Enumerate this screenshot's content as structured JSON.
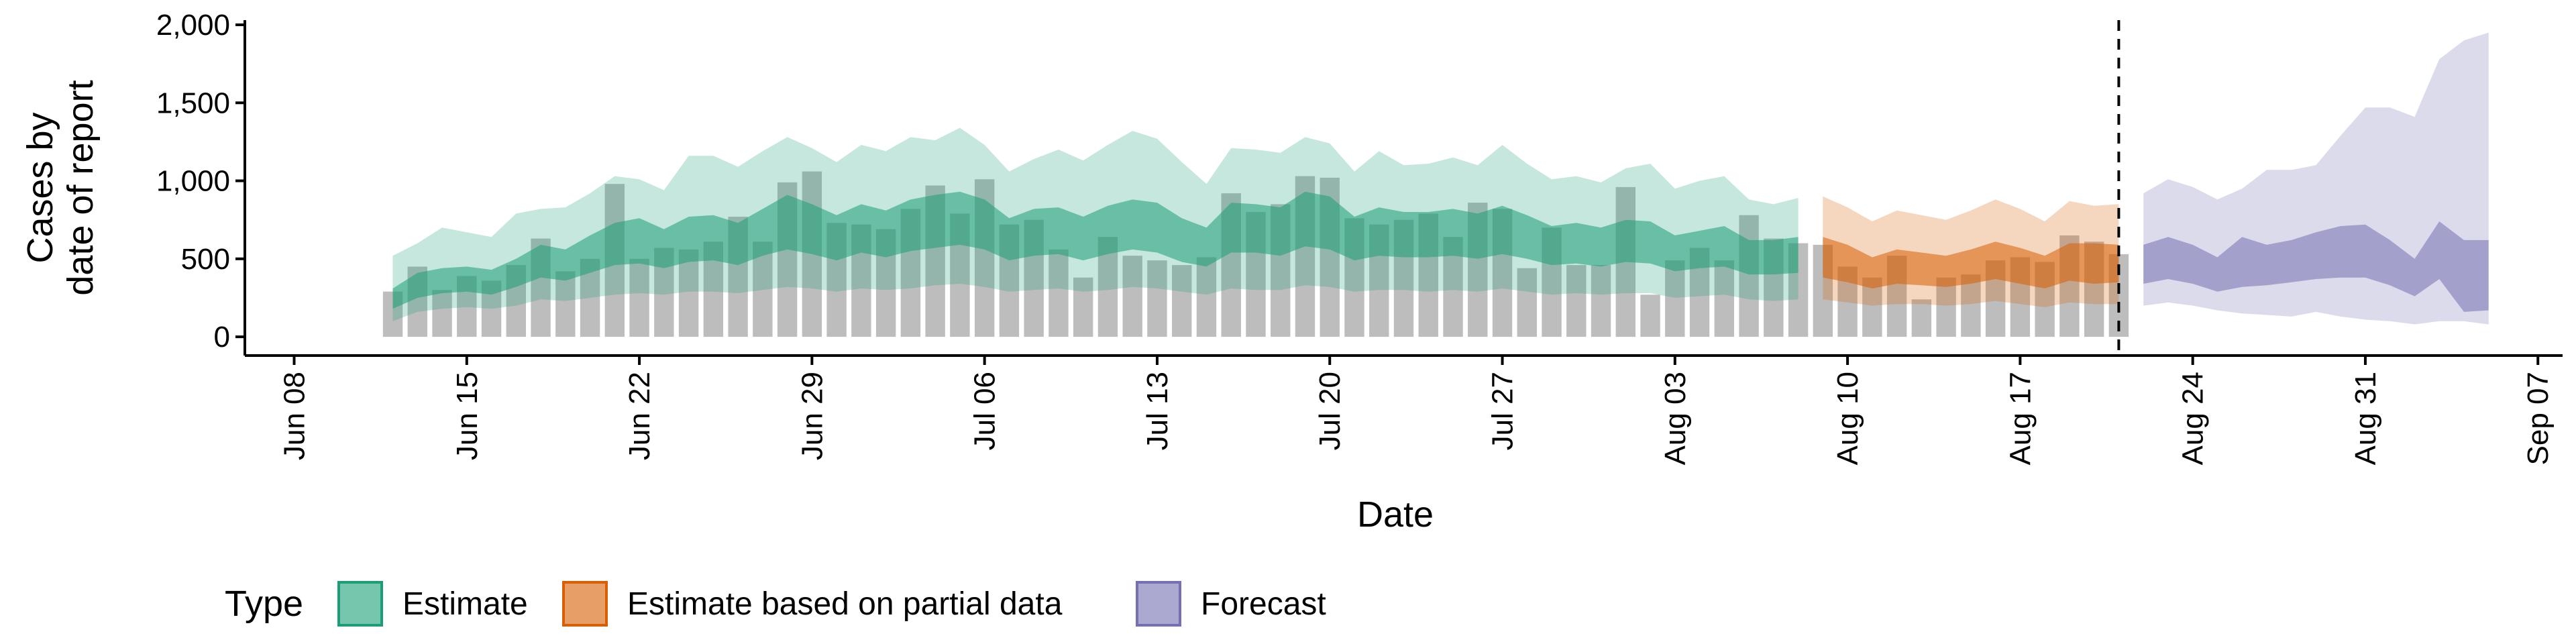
{
  "chart_data": {
    "type": "bar",
    "xlabel": "Date",
    "ylabel_lines": [
      "Cases by",
      "date of report"
    ],
    "x_range": [
      "2020-06-06",
      "2020-09-08"
    ],
    "ylim": [
      -120,
      2030
    ],
    "y_ticks": [
      0,
      500,
      1000,
      1500,
      2000
    ],
    "y_tick_labels": [
      "0",
      "500",
      "1,000",
      "1,500",
      "2,000"
    ],
    "x_ticks": [
      "2020-06-08",
      "2020-06-15",
      "2020-06-22",
      "2020-06-29",
      "2020-07-06",
      "2020-07-13",
      "2020-07-20",
      "2020-07-27",
      "2020-08-03",
      "2020-08-10",
      "2020-08-17",
      "2020-08-24",
      "2020-08-31",
      "2020-09-07"
    ],
    "x_tick_labels": [
      "Jun 08",
      "Jun 15",
      "Jun 22",
      "Jun 29",
      "Jul 06",
      "Jul 13",
      "Jul 20",
      "Jul 27",
      "Aug 03",
      "Aug 10",
      "Aug 17",
      "Aug 24",
      "Aug 31",
      "Sep 07"
    ],
    "forecast_line_date": "2020-08-21",
    "bars": {
      "start_date": "2020-06-12",
      "values": [
        290,
        450,
        300,
        390,
        360,
        460,
        630,
        420,
        500,
        980,
        500,
        570,
        560,
        610,
        770,
        610,
        990,
        1060,
        730,
        720,
        690,
        820,
        970,
        790,
        1010,
        720,
        750,
        560,
        380,
        640,
        520,
        490,
        460,
        510,
        920,
        800,
        850,
        1030,
        1020,
        760,
        720,
        750,
        790,
        640,
        860,
        820,
        440,
        700,
        460,
        460,
        960,
        270,
        490,
        570,
        490,
        780,
        630,
        600,
        590,
        450,
        380,
        520,
        240,
        380,
        400,
        490,
        510,
        480,
        650,
        610,
        530
      ]
    },
    "bands": [
      {
        "name": "Estimate",
        "color": "#1b9e77",
        "start_date": "2020-06-12",
        "outer_upper": [
          520,
          600,
          700,
          670,
          640,
          790,
          820,
          830,
          920,
          1030,
          1010,
          940,
          1160,
          1160,
          1090,
          1190,
          1280,
          1210,
          1120,
          1230,
          1190,
          1280,
          1260,
          1340,
          1230,
          1060,
          1140,
          1200,
          1130,
          1230,
          1320,
          1270,
          1120,
          980,
          1210,
          1200,
          1180,
          1280,
          1240,
          1060,
          1190,
          1100,
          1110,
          1150,
          1100,
          1230,
          1110,
          1010,
          1030,
          990,
          1080,
          1110,
          950,
          1000,
          1030,
          880,
          850,
          890
        ],
        "inner_upper": [
          310,
          410,
          440,
          450,
          430,
          500,
          590,
          560,
          650,
          730,
          760,
          690,
          770,
          780,
          730,
          820,
          910,
          850,
          780,
          850,
          810,
          880,
          910,
          930,
          880,
          760,
          820,
          830,
          770,
          840,
          880,
          860,
          760,
          700,
          860,
          850,
          830,
          930,
          900,
          770,
          830,
          800,
          800,
          820,
          790,
          840,
          780,
          710,
          730,
          700,
          750,
          740,
          650,
          680,
          710,
          620,
          620,
          640
        ],
        "inner_lower": [
          180,
          250,
          280,
          290,
          270,
          320,
          380,
          360,
          410,
          460,
          470,
          440,
          480,
          490,
          460,
          520,
          560,
          530,
          490,
          540,
          510,
          550,
          570,
          590,
          560,
          490,
          520,
          530,
          490,
          530,
          560,
          540,
          480,
          450,
          540,
          540,
          520,
          580,
          560,
          490,
          520,
          510,
          510,
          520,
          500,
          530,
          500,
          460,
          470,
          450,
          480,
          470,
          420,
          440,
          450,
          400,
          400,
          410
        ],
        "outer_lower": [
          100,
          160,
          180,
          190,
          180,
          200,
          240,
          230,
          250,
          270,
          280,
          270,
          290,
          290,
          280,
          300,
          320,
          310,
          290,
          310,
          300,
          310,
          330,
          340,
          320,
          290,
          300,
          310,
          290,
          300,
          320,
          310,
          290,
          270,
          310,
          300,
          300,
          330,
          320,
          290,
          300,
          300,
          290,
          300,
          290,
          310,
          290,
          270,
          280,
          270,
          280,
          280,
          250,
          260,
          270,
          240,
          230,
          240
        ]
      },
      {
        "name": "Estimate based on partial data",
        "color": "#d95f02",
        "start_date": "2020-08-09",
        "outer_upper": [
          900,
          830,
          740,
          810,
          780,
          750,
          810,
          880,
          820,
          740,
          870,
          840,
          850
        ],
        "inner_upper": [
          640,
          590,
          510,
          560,
          540,
          520,
          560,
          610,
          570,
          520,
          600,
          600,
          590
        ],
        "inner_lower": [
          380,
          350,
          310,
          340,
          330,
          320,
          340,
          370,
          340,
          310,
          360,
          340,
          350
        ],
        "outer_lower": [
          240,
          220,
          200,
          210,
          210,
          200,
          210,
          230,
          210,
          190,
          220,
          210,
          210
        ]
      },
      {
        "name": "Forecast",
        "color": "#7570b3",
        "start_date": "2020-08-22",
        "outer_upper": [
          920,
          1010,
          960,
          880,
          950,
          1070,
          1070,
          1100,
          1290,
          1470,
          1470,
          1410,
          1780,
          1900,
          1950
        ],
        "inner_upper": [
          590,
          640,
          590,
          510,
          640,
          590,
          620,
          670,
          710,
          720,
          620,
          500,
          740,
          620,
          620
        ],
        "inner_lower": [
          340,
          370,
          340,
          290,
          320,
          330,
          350,
          370,
          380,
          380,
          330,
          260,
          370,
          160,
          170
        ],
        "outer_lower": [
          200,
          220,
          200,
          170,
          150,
          140,
          130,
          160,
          130,
          110,
          100,
          80,
          100,
          100,
          80
        ]
      }
    ],
    "legend": {
      "position": "bottom",
      "title": "Type",
      "entries": [
        "Estimate",
        "Estimate based on partial data",
        "Forecast"
      ]
    },
    "grid": false
  }
}
